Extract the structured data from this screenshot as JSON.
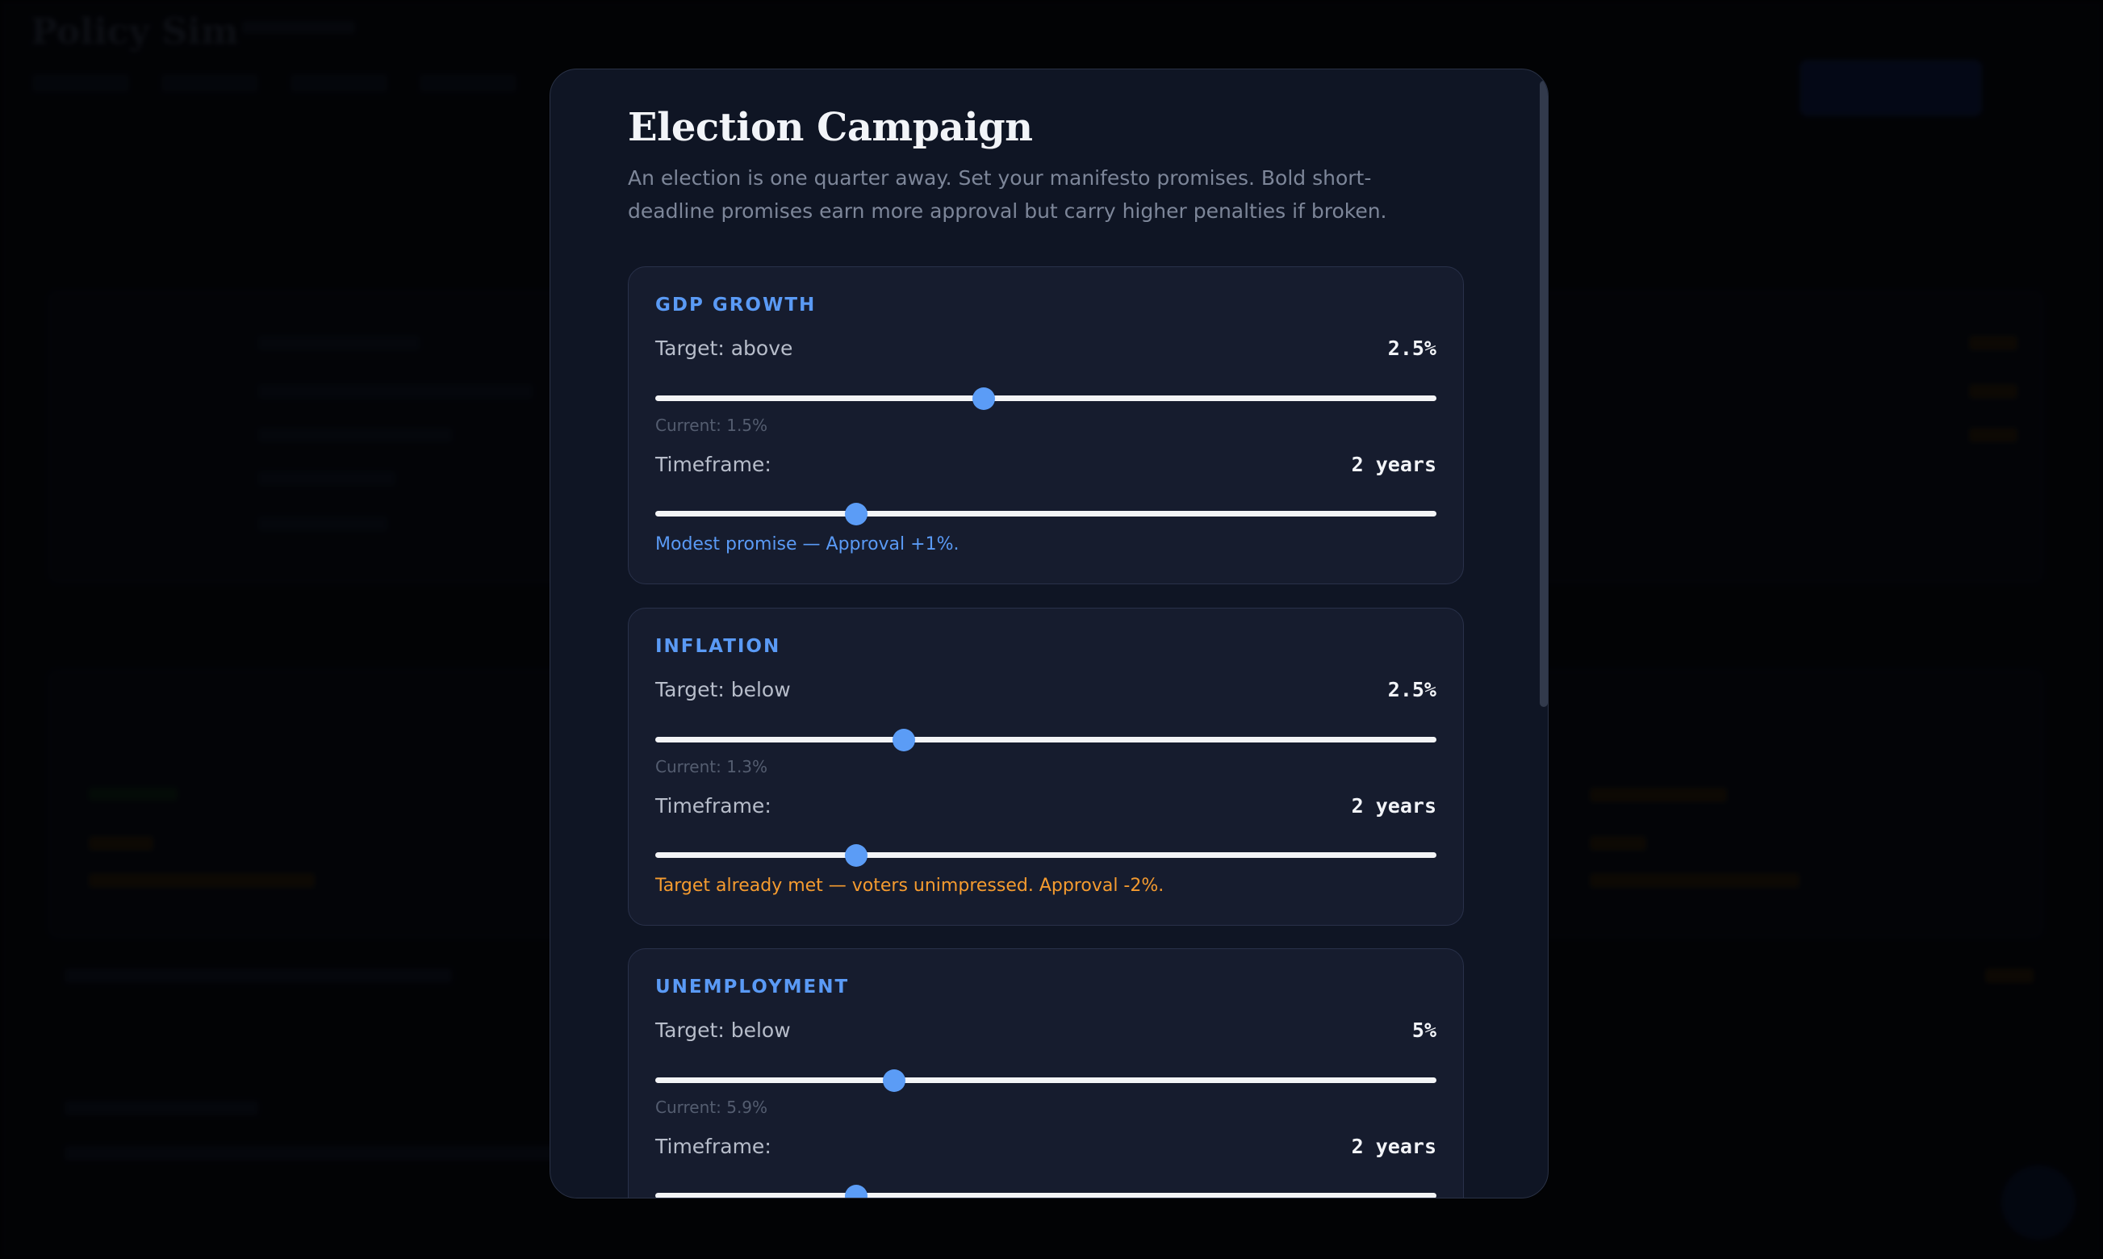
{
  "modal": {
    "title": "Election Campaign",
    "description": "An election is one quarter away. Set your manifesto promises. Bold short-deadline promises earn more approval but carry higher penalties if broken."
  },
  "colors": {
    "accent": "#5b9cf6",
    "positive_feedback": "#5a9af5",
    "negative_feedback": "#f59b2f"
  },
  "promises": [
    {
      "name": "GDP GROWTH",
      "target_label": "Target: above",
      "target_value": "2.5%",
      "target_slider_position": 0.42,
      "current": "Current: 1.5%",
      "timeframe_label": "Timeframe:",
      "timeframe_value": "2 years",
      "timeframe_slider_position": 0.257,
      "feedback": "Modest promise — Approval +1%.",
      "feedback_color": "#5a9af5"
    },
    {
      "name": "INFLATION",
      "target_label": "Target: below",
      "target_value": "2.5%",
      "target_slider_position": 0.318,
      "current": "Current: 1.3%",
      "timeframe_label": "Timeframe:",
      "timeframe_value": "2 years",
      "timeframe_slider_position": 0.257,
      "feedback": "Target already met — voters unimpressed. Approval -2%.",
      "feedback_color": "#f59b2f"
    },
    {
      "name": "UNEMPLOYMENT",
      "target_label": "Target: below",
      "target_value": "5%",
      "target_slider_position": 0.306,
      "current": "Current: 5.9%",
      "timeframe_label": "Timeframe:",
      "timeframe_value": "2 years",
      "timeframe_slider_position": 0.257
    }
  ]
}
